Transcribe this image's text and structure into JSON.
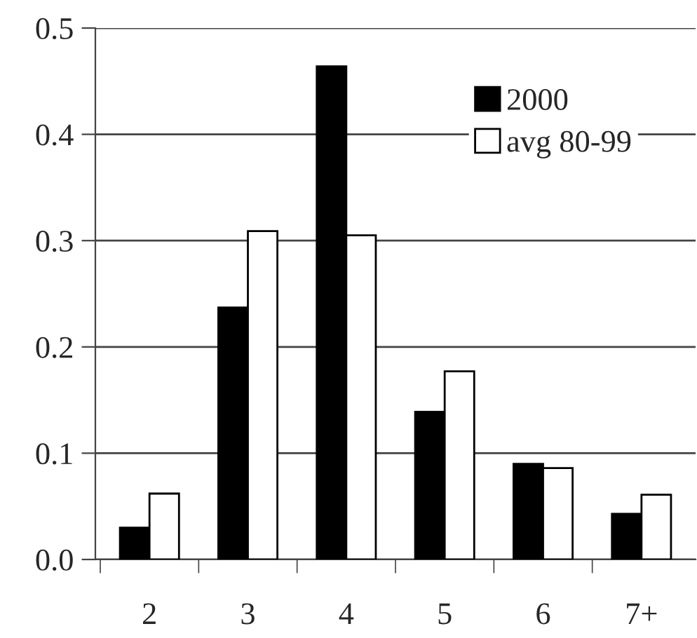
{
  "chart_data": {
    "type": "bar",
    "categories": [
      "2",
      "3",
      "4",
      "5",
      "6",
      "7+"
    ],
    "series": [
      {
        "name": "2000",
        "color": "#000000",
        "values": [
          0.03,
          0.237,
          0.464,
          0.139,
          0.09,
          0.043
        ]
      },
      {
        "name": "avg 80-99",
        "color": "#ffffff",
        "values": [
          0.062,
          0.309,
          0.305,
          0.177,
          0.086,
          0.061
        ]
      }
    ],
    "ylim": [
      0,
      0.5
    ],
    "yticks": [
      {
        "value": 0,
        "label": "0.0"
      },
      0.1,
      0.2,
      0.3,
      0.4,
      0.5
    ],
    "grid": "y",
    "legend": "top right"
  }
}
